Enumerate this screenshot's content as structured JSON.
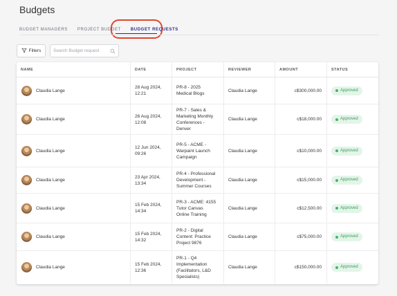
{
  "page": {
    "title": "Budgets"
  },
  "tabs": [
    {
      "label": "BUDGET MANAGERS"
    },
    {
      "label": "PROJECT BUDGET"
    },
    {
      "label": "BUDGET REQUESTS"
    }
  ],
  "toolbar": {
    "filters_label": "Filters",
    "search_placeholder": "Search Budget request"
  },
  "table": {
    "headers": {
      "name": "NAME",
      "date": "DATE",
      "project": "PROJECT",
      "reviewer": "REVIEWER",
      "amount": "AMOUNT",
      "status": "STATUS"
    },
    "rows": [
      {
        "name": "Claudia Lange",
        "date": "28 Aug 2024,\n12:21",
        "project": "PR-8 - 2025\nMedical Blogs",
        "reviewer": "Claudia Lange",
        "amount": "c$300,000.00",
        "status": "Approved"
      },
      {
        "name": "Claudia Lange",
        "date": "26 Aug 2024,\n12:08",
        "project": "PR-7 - Sales &\nMarketing Monthly\nConferences -\nDenver",
        "reviewer": "Claudia Lange",
        "amount": "c$18,000.00",
        "status": "Approved"
      },
      {
        "name": "Claudia Lange",
        "date": "12 Jun 2024,\n09:26",
        "project": "PR-5 - ACME -\nWarpaint Launch\nCampaign",
        "reviewer": "Claudia Lange",
        "amount": "c$10,000.00",
        "status": "Approved"
      },
      {
        "name": "Claudia Lange",
        "date": "23 Apr 2024,\n13:34",
        "project": "PR-4 - Professional\nDevelopment -\nSummer Courses",
        "reviewer": "Claudia Lange",
        "amount": "c$15,000.00",
        "status": "Approved"
      },
      {
        "name": "Claudia Lange",
        "date": "15 Feb 2024,\n14:34",
        "project": "PR-3 - ACME: 4155\nTutor Canvas\nOnline Training",
        "reviewer": "Claudia Lange",
        "amount": "c$12,500.00",
        "status": "Approved"
      },
      {
        "name": "Claudia Lange",
        "date": "15 Feb 2024,\n14:32",
        "project": "PR-2 - Digital\nContent: Practice\nProject 9876",
        "reviewer": "Claudia Lange",
        "amount": "c$75,000.00",
        "status": "Approved"
      },
      {
        "name": "Claudia Lange",
        "date": "15 Feb 2024,\n12:36",
        "project": "PR-1 - Q4\nImplementation\n(Facilitators, L&D\nSpecialists)",
        "reviewer": "Claudia Lange",
        "amount": "c$150,000.00",
        "status": "Approved"
      }
    ]
  },
  "icons": {
    "filter": "filter-icon",
    "search": "search-icon"
  },
  "colors": {
    "active_tab": "#2b2b8a",
    "highlight": "#e0452b",
    "approved_bg": "#e3f5e9",
    "approved_text": "#3d9b5e"
  }
}
